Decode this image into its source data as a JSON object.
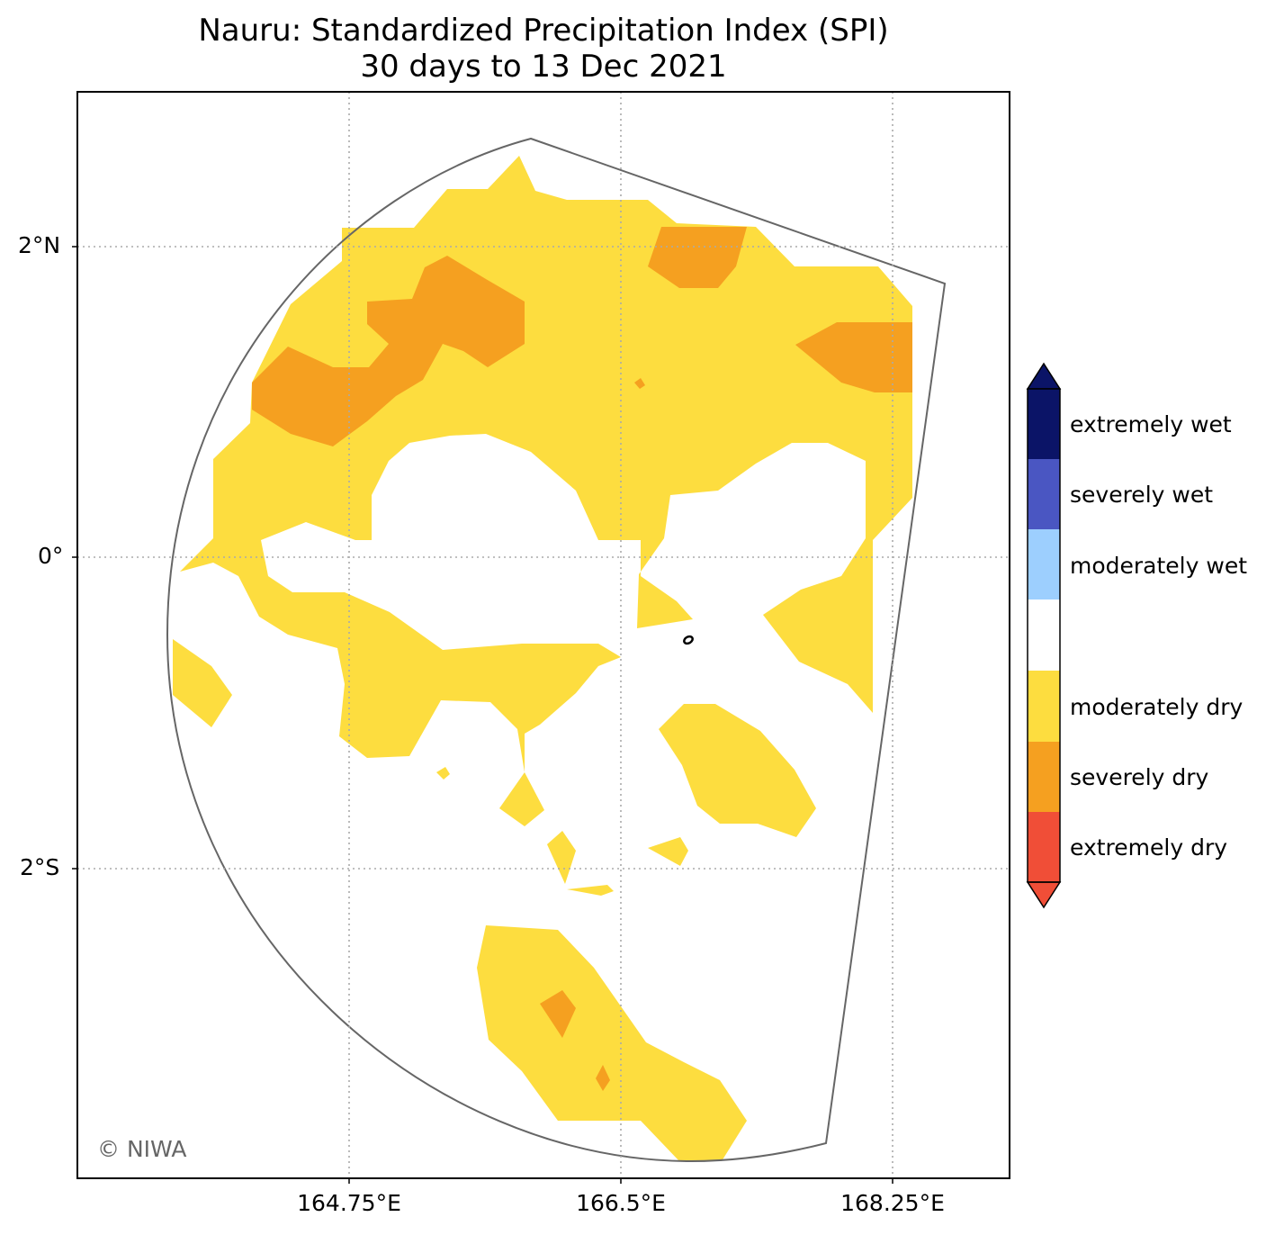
{
  "title": "Nauru: Standardized Precipitation Index (SPI)",
  "subtitle": "30 days to 13 Dec 2021",
  "credit": "© NIWA",
  "axes": {
    "lat_ticks": [
      "2°N",
      "0°",
      "2°S"
    ],
    "lon_ticks": [
      "164.75°E",
      "166.5°E",
      "168.25°E"
    ]
  },
  "legend": {
    "position": "right",
    "categories": [
      {
        "label": "extremely wet",
        "color": "#0b1467"
      },
      {
        "label": "severely wet",
        "color": "#4a56c2"
      },
      {
        "label": "moderately wet",
        "color": "#9dcffe"
      },
      {
        "label": "",
        "color": "#ffffff"
      },
      {
        "label": "moderately dry",
        "color": "#fddd3f"
      },
      {
        "label": "severely dry",
        "color": "#f5a020"
      },
      {
        "label": "extremely dry",
        "color": "#f04e37"
      }
    ],
    "extend_top_color": "#0b1467",
    "extend_bottom_color": "#f04e37"
  },
  "map": {
    "region": "Nauru",
    "grid": true,
    "colors": {
      "moderately_dry": "#fddd3f",
      "severely_dry": "#f5a020",
      "boundary": "#666666",
      "gridline": "#aaaaaa"
    }
  }
}
